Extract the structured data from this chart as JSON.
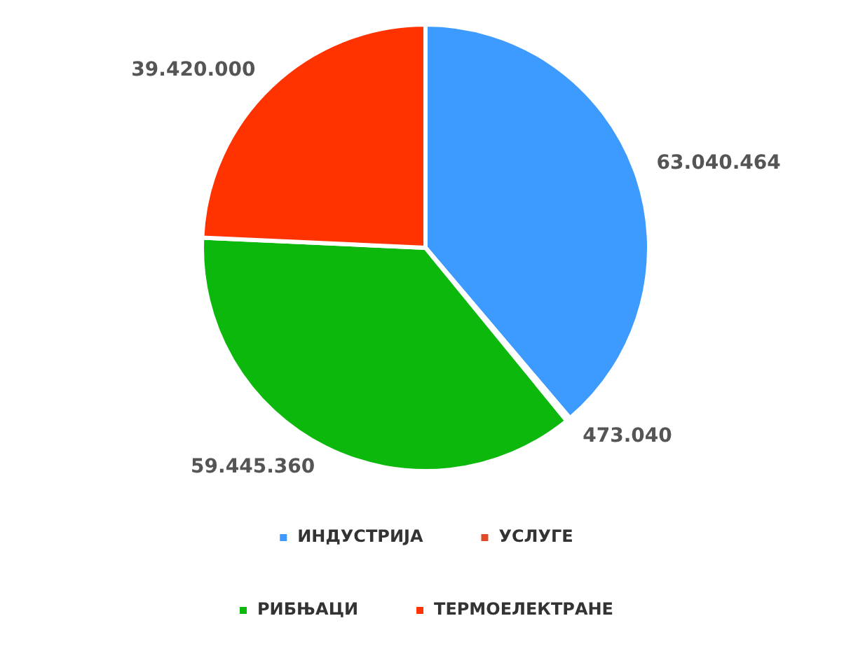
{
  "chart_data": {
    "type": "pie",
    "categories": [
      "ИНДУСТРИЈА",
      "УСЛУГЕ",
      "РИБЊАЦИ",
      "ТЕРМОЕЛЕКТРАНЕ"
    ],
    "values": [
      63040464,
      473040,
      59445360,
      39420000
    ],
    "colors": [
      "#3d9bff",
      "#e04a2a",
      "#0cb80c",
      "#ff3300"
    ],
    "value_labels": [
      "63.040.464",
      "473.040",
      "59.445.360",
      "39.420.000"
    ],
    "legend": "bottom"
  }
}
